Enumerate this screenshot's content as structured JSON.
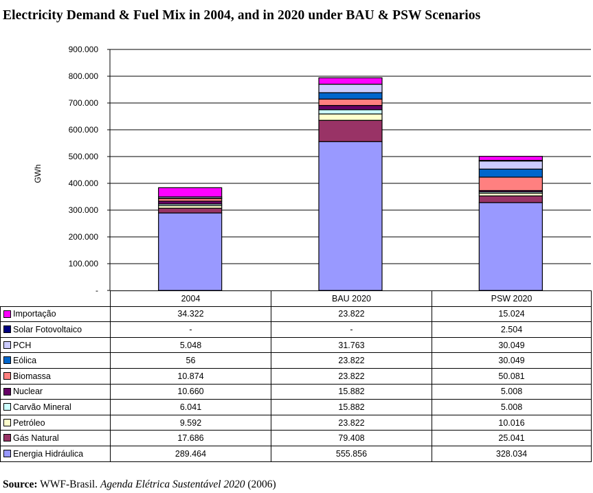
{
  "title": "Electricity Demand & Fuel Mix in 2004, and in 2020 under BAU & PSW Scenarios",
  "chart_data": {
    "type": "bar",
    "stacked": true,
    "title": "Electricity Demand & Fuel Mix in 2004, and in 2020 under BAU & PSW Scenarios",
    "ylabel": "GWh",
    "xlabel": "",
    "ylim": [
      0,
      900000
    ],
    "yticks": [
      "-",
      "100.000",
      "200.000",
      "300.000",
      "400.000",
      "500.000",
      "600.000",
      "700.000",
      "800.000",
      "900.000"
    ],
    "categories": [
      "2004",
      "BAU 2020",
      "PSW 2020"
    ],
    "grid": true,
    "legend": "table-below",
    "series": [
      {
        "name": "Energia Hidráulica",
        "color": "#9999ff",
        "values": [
          289464,
          555856,
          328034
        ],
        "labels": [
          "289.464",
          "555.856",
          "328.034"
        ]
      },
      {
        "name": "Gás Natural",
        "color": "#993366",
        "values": [
          17686,
          79408,
          25041
        ],
        "labels": [
          "17.686",
          "79.408",
          "25.041"
        ]
      },
      {
        "name": "Petróleo",
        "color": "#ffffcc",
        "values": [
          9592,
          23822,
          10016
        ],
        "labels": [
          "9.592",
          "23.822",
          "10.016"
        ]
      },
      {
        "name": "Carvão Mineral",
        "color": "#ccffff",
        "values": [
          6041,
          15882,
          5008
        ],
        "labels": [
          "6.041",
          "15.882",
          "5.008"
        ]
      },
      {
        "name": "Nuclear",
        "color": "#660066",
        "values": [
          10660,
          15882,
          5008
        ],
        "labels": [
          "10.660",
          "15.882",
          "5.008"
        ]
      },
      {
        "name": "Biomassa",
        "color": "#ff8080",
        "values": [
          10874,
          23822,
          50081
        ],
        "labels": [
          "10.874",
          "23.822",
          "50.081"
        ]
      },
      {
        "name": "Eólica",
        "color": "#0066cc",
        "values": [
          56,
          23822,
          30049
        ],
        "labels": [
          "56",
          "23.822",
          "30.049"
        ]
      },
      {
        "name": "PCH",
        "color": "#ccccff",
        "values": [
          5048,
          31763,
          30049
        ],
        "labels": [
          "5.048",
          "31.763",
          "30.049"
        ]
      },
      {
        "name": "Solar Fotovoltaico",
        "color": "#000080",
        "values": [
          0,
          0,
          2504
        ],
        "labels": [
          "-",
          "-",
          "2.504"
        ]
      },
      {
        "name": "Importação",
        "color": "#ff00ff",
        "values": [
          34322,
          23822,
          15024
        ],
        "labels": [
          "34.322",
          "23.822",
          "15.024"
        ]
      }
    ]
  },
  "source": {
    "label": "Source:",
    "org": "WWF-Brasil.",
    "work": "Agenda Elétrica Sustentável 2020",
    "year": "(2006)"
  }
}
